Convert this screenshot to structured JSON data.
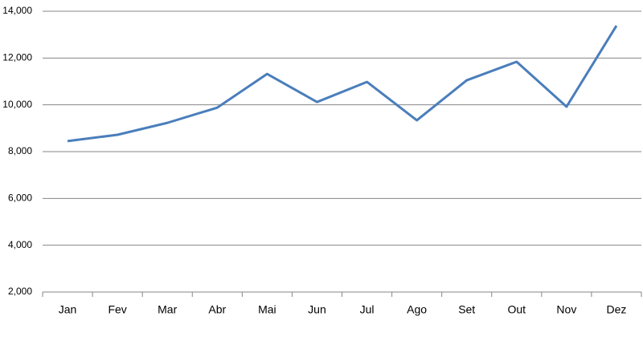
{
  "chart_data": {
    "type": "line",
    "categories": [
      "Jan",
      "Fev",
      "Mar",
      "Abr",
      "Mai",
      "Jun",
      "Jul",
      "Ago",
      "Set",
      "Out",
      "Nov",
      "Dez"
    ],
    "values": [
      8450,
      8720,
      9230,
      9880,
      11320,
      10120,
      10980,
      9340,
      11050,
      11840,
      9920,
      13380
    ],
    "color": "#4a7ebb",
    "ylim": [
      2000,
      14000
    ],
    "yticks": [
      {
        "value": 2000,
        "label": "2,000"
      },
      {
        "value": 4000,
        "label": "4,000"
      },
      {
        "value": 6000,
        "label": "6,000"
      },
      {
        "value": 8000,
        "label": "8,000"
      },
      {
        "value": 10000,
        "label": "10,000"
      },
      {
        "value": 12000,
        "label": "12,000"
      },
      {
        "value": 14000,
        "label": "14,000"
      }
    ],
    "grid": true
  }
}
